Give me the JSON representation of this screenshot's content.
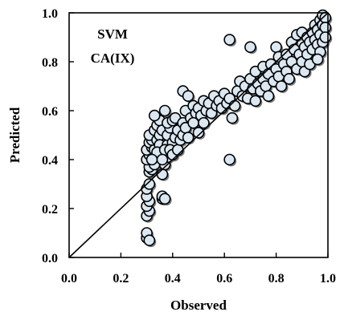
{
  "chart_data": {
    "type": "scatter",
    "title": "",
    "xlabel": "Observed",
    "ylabel": "Predicted",
    "annotations": [
      "SVM",
      "CA(IX)"
    ],
    "xlim": [
      0.0,
      1.0
    ],
    "ylim": [
      0.0,
      1.0
    ],
    "xticks": [
      "0.0",
      "0.2",
      "0.4",
      "0.6",
      "0.8",
      "1.0"
    ],
    "yticks": [
      "0.0",
      "0.2",
      "0.4",
      "0.6",
      "0.8",
      "1.0"
    ],
    "grid": false,
    "reference_line": "y = x",
    "colors": {
      "marker_fill": "#dbe8f2",
      "marker_edge": "#000000",
      "shadow": "#7a7a7a"
    },
    "points": [
      [
        0.3,
        0.08
      ],
      [
        0.3,
        0.1
      ],
      [
        0.31,
        0.07
      ],
      [
        0.3,
        0.17
      ],
      [
        0.31,
        0.19
      ],
      [
        0.3,
        0.21
      ],
      [
        0.31,
        0.23
      ],
      [
        0.3,
        0.25
      ],
      [
        0.3,
        0.28
      ],
      [
        0.31,
        0.3
      ],
      [
        0.31,
        0.35
      ],
      [
        0.32,
        0.36
      ],
      [
        0.31,
        0.37
      ],
      [
        0.33,
        0.38
      ],
      [
        0.3,
        0.4
      ],
      [
        0.31,
        0.42
      ],
      [
        0.3,
        0.44
      ],
      [
        0.32,
        0.45
      ],
      [
        0.31,
        0.47
      ],
      [
        0.33,
        0.44
      ],
      [
        0.32,
        0.48
      ],
      [
        0.31,
        0.5
      ],
      [
        0.34,
        0.48
      ],
      [
        0.33,
        0.52
      ],
      [
        0.35,
        0.5
      ],
      [
        0.34,
        0.54
      ],
      [
        0.35,
        0.56
      ],
      [
        0.33,
        0.58
      ],
      [
        0.36,
        0.52
      ],
      [
        0.35,
        0.46
      ],
      [
        0.34,
        0.43
      ],
      [
        0.32,
        0.4
      ],
      [
        0.36,
        0.24
      ],
      [
        0.36,
        0.25
      ],
      [
        0.37,
        0.24
      ],
      [
        0.36,
        0.34
      ],
      [
        0.37,
        0.38
      ],
      [
        0.38,
        0.41
      ],
      [
        0.38,
        0.46
      ],
      [
        0.37,
        0.44
      ],
      [
        0.36,
        0.4
      ],
      [
        0.38,
        0.5
      ],
      [
        0.39,
        0.53
      ],
      [
        0.37,
        0.6
      ],
      [
        0.38,
        0.55
      ],
      [
        0.4,
        0.47
      ],
      [
        0.39,
        0.44
      ],
      [
        0.4,
        0.42
      ],
      [
        0.4,
        0.56
      ],
      [
        0.41,
        0.49
      ],
      [
        0.42,
        0.52
      ],
      [
        0.41,
        0.57
      ],
      [
        0.42,
        0.44
      ],
      [
        0.43,
        0.48
      ],
      [
        0.44,
        0.5
      ],
      [
        0.44,
        0.55
      ],
      [
        0.45,
        0.6
      ],
      [
        0.44,
        0.68
      ],
      [
        0.46,
        0.66
      ],
      [
        0.45,
        0.53
      ],
      [
        0.46,
        0.49
      ],
      [
        0.47,
        0.57
      ],
      [
        0.48,
        0.62
      ],
      [
        0.49,
        0.59
      ],
      [
        0.48,
        0.55
      ],
      [
        0.5,
        0.51
      ],
      [
        0.5,
        0.61
      ],
      [
        0.51,
        0.58
      ],
      [
        0.52,
        0.64
      ],
      [
        0.52,
        0.55
      ],
      [
        0.53,
        0.6
      ],
      [
        0.54,
        0.63
      ],
      [
        0.55,
        0.59
      ],
      [
        0.56,
        0.66
      ],
      [
        0.57,
        0.62
      ],
      [
        0.58,
        0.64
      ],
      [
        0.59,
        0.61
      ],
      [
        0.6,
        0.67
      ],
      [
        0.61,
        0.63
      ],
      [
        0.62,
        0.65
      ],
      [
        0.62,
        0.4
      ],
      [
        0.62,
        0.89
      ],
      [
        0.63,
        0.57
      ],
      [
        0.64,
        0.62
      ],
      [
        0.65,
        0.68
      ],
      [
        0.66,
        0.72
      ],
      [
        0.67,
        0.66
      ],
      [
        0.68,
        0.7
      ],
      [
        0.69,
        0.65
      ],
      [
        0.7,
        0.73
      ],
      [
        0.7,
        0.86
      ],
      [
        0.71,
        0.69
      ],
      [
        0.72,
        0.76
      ],
      [
        0.72,
        0.64
      ],
      [
        0.73,
        0.71
      ],
      [
        0.74,
        0.68
      ],
      [
        0.75,
        0.78
      ],
      [
        0.75,
        0.73
      ],
      [
        0.76,
        0.7
      ],
      [
        0.77,
        0.75
      ],
      [
        0.77,
        0.66
      ],
      [
        0.78,
        0.79
      ],
      [
        0.79,
        0.72
      ],
      [
        0.8,
        0.77
      ],
      [
        0.8,
        0.86
      ],
      [
        0.81,
        0.82
      ],
      [
        0.81,
        0.74
      ],
      [
        0.82,
        0.7
      ],
      [
        0.83,
        0.79
      ],
      [
        0.84,
        0.76
      ],
      [
        0.84,
        0.83
      ],
      [
        0.85,
        0.73
      ],
      [
        0.86,
        0.88
      ],
      [
        0.86,
        0.8
      ],
      [
        0.87,
        0.85
      ],
      [
        0.88,
        0.77
      ],
      [
        0.88,
        0.91
      ],
      [
        0.89,
        0.83
      ],
      [
        0.9,
        0.92
      ],
      [
        0.9,
        0.8
      ],
      [
        0.91,
        0.86
      ],
      [
        0.91,
        0.76
      ],
      [
        0.92,
        0.9
      ],
      [
        0.92,
        0.83
      ],
      [
        0.93,
        0.88
      ],
      [
        0.93,
        0.79
      ],
      [
        0.94,
        0.92
      ],
      [
        0.94,
        0.85
      ],
      [
        0.95,
        0.89
      ],
      [
        0.95,
        0.95
      ],
      [
        0.96,
        0.87
      ],
      [
        0.96,
        0.93
      ],
      [
        0.97,
        0.91
      ],
      [
        0.97,
        0.97
      ],
      [
        0.98,
        0.95
      ],
      [
        0.98,
        0.99
      ],
      [
        0.99,
        0.98
      ],
      [
        0.99,
        0.94
      ],
      [
        0.98,
        0.88
      ],
      [
        0.97,
        0.84
      ],
      [
        0.96,
        0.81
      ],
      [
        0.99,
        0.9
      ]
    ]
  }
}
